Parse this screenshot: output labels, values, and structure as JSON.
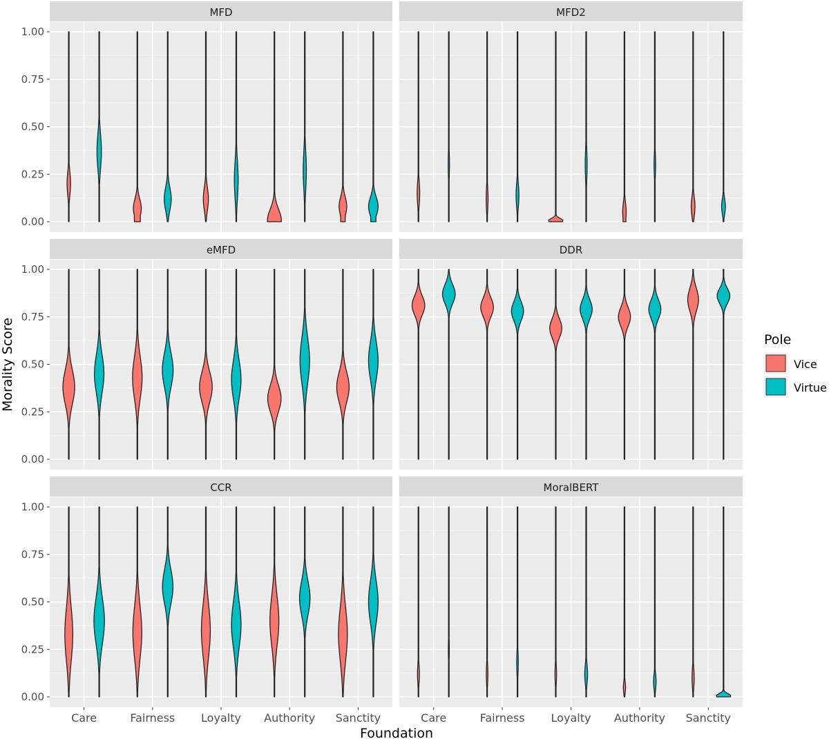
{
  "chart_data": {
    "type": "violin",
    "layout": "facet-grid-3x2",
    "xlabel": "Foundation",
    "ylabel": "Morality Score",
    "ylim": [
      0,
      1
    ],
    "y_ticks": [
      "0.00",
      "0.25",
      "0.50",
      "0.75",
      "1.00"
    ],
    "categories": [
      "Care",
      "Fairness",
      "Loyalty",
      "Authority",
      "Sanctity"
    ],
    "grid": true,
    "legend": {
      "title": "Pole",
      "placement": "right",
      "items": [
        {
          "name": "Vice",
          "color": "#F8766D"
        },
        {
          "name": "Virtue",
          "color": "#00BFC4"
        }
      ]
    },
    "panels": [
      {
        "title": "MFD",
        "violins": [
          {
            "foundation": "Care",
            "pole": "Vice",
            "range": [
              0,
              1
            ],
            "peak": 0.2,
            "spread": 0.06,
            "width": 0.11,
            "floor": 0
          },
          {
            "foundation": "Care",
            "pole": "Virtue",
            "range": [
              0,
              1
            ],
            "peak": 0.37,
            "spread": 0.09,
            "width": 0.14,
            "floor": 0
          },
          {
            "foundation": "Fairness",
            "pole": "Vice",
            "range": [
              0,
              1
            ],
            "peak": 0.07,
            "spread": 0.05,
            "width": 0.25,
            "floor": 0.75
          },
          {
            "foundation": "Fairness",
            "pole": "Virtue",
            "range": [
              0,
              1
            ],
            "peak": 0.12,
            "spread": 0.06,
            "width": 0.22,
            "floor": 0.1
          },
          {
            "foundation": "Loyalty",
            "pole": "Vice",
            "range": [
              0,
              1
            ],
            "peak": 0.12,
            "spread": 0.06,
            "width": 0.16,
            "floor": 0
          },
          {
            "foundation": "Loyalty",
            "pole": "Virtue",
            "range": [
              0,
              1
            ],
            "peak": 0.22,
            "spread": 0.1,
            "width": 0.12,
            "floor": 0
          },
          {
            "foundation": "Authority",
            "pole": "Vice",
            "range": [
              0,
              1
            ],
            "peak": 0.005,
            "spread": 0.06,
            "width": 0.44,
            "floor": 0.95
          },
          {
            "foundation": "Authority",
            "pole": "Virtue",
            "range": [
              0,
              1
            ],
            "peak": 0.27,
            "spread": 0.1,
            "width": 0.1,
            "floor": 0
          },
          {
            "foundation": "Sanctity",
            "pole": "Vice",
            "range": [
              0,
              1
            ],
            "peak": 0.08,
            "spread": 0.05,
            "width": 0.24,
            "floor": 0.6
          },
          {
            "foundation": "Sanctity",
            "pole": "Virtue",
            "range": [
              0,
              1
            ],
            "peak": 0.08,
            "spread": 0.05,
            "width": 0.3,
            "floor": 0.55
          }
        ]
      },
      {
        "title": "MFD2",
        "violins": [
          {
            "foundation": "Care",
            "pole": "Vice",
            "range": [
              0,
              1
            ],
            "peak": 0.15,
            "spread": 0.06,
            "width": 0.08,
            "floor": 0
          },
          {
            "foundation": "Care",
            "pole": "Virtue",
            "range": [
              0,
              1
            ],
            "peak": 0.3,
            "spread": 0.07,
            "width": 0.04,
            "floor": 0
          },
          {
            "foundation": "Fairness",
            "pole": "Vice",
            "range": [
              0,
              1
            ],
            "peak": 0.12,
            "spread": 0.06,
            "width": 0.06,
            "floor": 0
          },
          {
            "foundation": "Fairness",
            "pole": "Virtue",
            "range": [
              0,
              1
            ],
            "peak": 0.14,
            "spread": 0.06,
            "width": 0.09,
            "floor": 0
          },
          {
            "foundation": "Loyalty",
            "pole": "Vice",
            "range": [
              0,
              1
            ],
            "peak": 0.005,
            "spread": 0.012,
            "width": 0.47,
            "floor": 0.9
          },
          {
            "foundation": "Loyalty",
            "pole": "Virtue",
            "range": [
              0,
              1
            ],
            "peak": 0.3,
            "spread": 0.08,
            "width": 0.06,
            "floor": 0
          },
          {
            "foundation": "Authority",
            "pole": "Vice",
            "range": [
              0,
              1
            ],
            "peak": 0.05,
            "spread": 0.05,
            "width": 0.11,
            "floor": 0.85
          },
          {
            "foundation": "Authority",
            "pole": "Virtue",
            "range": [
              0,
              1
            ],
            "peak": 0.3,
            "spread": 0.06,
            "width": 0.05,
            "floor": 0
          },
          {
            "foundation": "Sanctity",
            "pole": "Vice",
            "range": [
              0,
              1
            ],
            "peak": 0.08,
            "spread": 0.05,
            "width": 0.12,
            "floor": 0.3
          },
          {
            "foundation": "Sanctity",
            "pole": "Virtue",
            "range": [
              0,
              1
            ],
            "peak": 0.08,
            "spread": 0.04,
            "width": 0.12,
            "floor": 0.2
          }
        ]
      },
      {
        "title": "eMFD",
        "violins": [
          {
            "foundation": "Care",
            "pole": "Vice",
            "range": [
              0,
              1
            ],
            "peak": 0.38,
            "spread": 0.09,
            "width": 0.37,
            "floor": 0
          },
          {
            "foundation": "Care",
            "pole": "Virtue",
            "range": [
              0,
              1
            ],
            "peak": 0.45,
            "spread": 0.1,
            "width": 0.3,
            "floor": 0
          },
          {
            "foundation": "Fairness",
            "pole": "Vice",
            "range": [
              0,
              1
            ],
            "peak": 0.43,
            "spread": 0.11,
            "width": 0.3,
            "floor": 0
          },
          {
            "foundation": "Fairness",
            "pole": "Virtue",
            "range": [
              0,
              1
            ],
            "peak": 0.47,
            "spread": 0.09,
            "width": 0.34,
            "floor": 0
          },
          {
            "foundation": "Loyalty",
            "pole": "Vice",
            "range": [
              0,
              1
            ],
            "peak": 0.38,
            "spread": 0.08,
            "width": 0.4,
            "floor": 0
          },
          {
            "foundation": "Loyalty",
            "pole": "Virtue",
            "range": [
              0,
              1
            ],
            "peak": 0.42,
            "spread": 0.1,
            "width": 0.3,
            "floor": 0
          },
          {
            "foundation": "Authority",
            "pole": "Vice",
            "range": [
              0,
              1
            ],
            "peak": 0.32,
            "spread": 0.07,
            "width": 0.42,
            "floor": 0
          },
          {
            "foundation": "Authority",
            "pole": "Virtue",
            "range": [
              0,
              1
            ],
            "peak": 0.52,
            "spread": 0.12,
            "width": 0.3,
            "floor": 0
          },
          {
            "foundation": "Sanctity",
            "pole": "Vice",
            "range": [
              0,
              1
            ],
            "peak": 0.38,
            "spread": 0.08,
            "width": 0.39,
            "floor": 0
          },
          {
            "foundation": "Sanctity",
            "pole": "Virtue",
            "range": [
              0,
              1
            ],
            "peak": 0.52,
            "spread": 0.1,
            "width": 0.3,
            "floor": 0
          }
        ]
      },
      {
        "title": "DDR",
        "violins": [
          {
            "foundation": "Care",
            "pole": "Vice",
            "range": [
              0,
              1
            ],
            "peak": 0.81,
            "spread": 0.05,
            "width": 0.4,
            "floor": 0
          },
          {
            "foundation": "Care",
            "pole": "Virtue",
            "range": [
              0,
              1
            ],
            "peak": 0.87,
            "spread": 0.05,
            "width": 0.4,
            "floor": 0
          },
          {
            "foundation": "Fairness",
            "pole": "Vice",
            "range": [
              0,
              1
            ],
            "peak": 0.8,
            "spread": 0.05,
            "width": 0.4,
            "floor": 0
          },
          {
            "foundation": "Fairness",
            "pole": "Virtue",
            "range": [
              0,
              1
            ],
            "peak": 0.78,
            "spread": 0.05,
            "width": 0.38,
            "floor": 0
          },
          {
            "foundation": "Loyalty",
            "pole": "Vice",
            "range": [
              0,
              1
            ],
            "peak": 0.69,
            "spread": 0.05,
            "width": 0.38,
            "floor": 0
          },
          {
            "foundation": "Loyalty",
            "pole": "Virtue",
            "range": [
              0,
              1
            ],
            "peak": 0.79,
            "spread": 0.05,
            "width": 0.38,
            "floor": 0
          },
          {
            "foundation": "Authority",
            "pole": "Vice",
            "range": [
              0,
              1
            ],
            "peak": 0.75,
            "spread": 0.05,
            "width": 0.38,
            "floor": 0
          },
          {
            "foundation": "Authority",
            "pole": "Virtue",
            "range": [
              0,
              1
            ],
            "peak": 0.79,
            "spread": 0.05,
            "width": 0.38,
            "floor": 0
          },
          {
            "foundation": "Sanctity",
            "pole": "Vice",
            "range": [
              0,
              1
            ],
            "peak": 0.84,
            "spread": 0.06,
            "width": 0.34,
            "floor": 0
          },
          {
            "foundation": "Sanctity",
            "pole": "Virtue",
            "range": [
              0,
              1
            ],
            "peak": 0.86,
            "spread": 0.04,
            "width": 0.4,
            "floor": 0
          }
        ]
      },
      {
        "title": "CCR",
        "violins": [
          {
            "foundation": "Care",
            "pole": "Vice",
            "range": [
              0,
              1
            ],
            "peak": 0.33,
            "spread": 0.14,
            "width": 0.25,
            "floor": 0
          },
          {
            "foundation": "Care",
            "pole": "Virtue",
            "range": [
              0,
              1
            ],
            "peak": 0.4,
            "spread": 0.12,
            "width": 0.33,
            "floor": 0
          },
          {
            "foundation": "Fairness",
            "pole": "Vice",
            "range": [
              0,
              1
            ],
            "peak": 0.34,
            "spread": 0.14,
            "width": 0.28,
            "floor": 0
          },
          {
            "foundation": "Fairness",
            "pole": "Virtue",
            "range": [
              0,
              1
            ],
            "peak": 0.58,
            "spread": 0.09,
            "width": 0.33,
            "floor": 0
          },
          {
            "foundation": "Loyalty",
            "pole": "Vice",
            "range": [
              0,
              1
            ],
            "peak": 0.35,
            "spread": 0.14,
            "width": 0.28,
            "floor": 0
          },
          {
            "foundation": "Loyalty",
            "pole": "Virtue",
            "range": [
              0,
              1
            ],
            "peak": 0.38,
            "spread": 0.12,
            "width": 0.3,
            "floor": 0
          },
          {
            "foundation": "Authority",
            "pole": "Vice",
            "range": [
              0,
              1
            ],
            "peak": 0.4,
            "spread": 0.13,
            "width": 0.28,
            "floor": 0
          },
          {
            "foundation": "Authority",
            "pole": "Virtue",
            "range": [
              0,
              1
            ],
            "peak": 0.52,
            "spread": 0.09,
            "width": 0.33,
            "floor": 0
          },
          {
            "foundation": "Sanctity",
            "pole": "Vice",
            "range": [
              0,
              1
            ],
            "peak": 0.33,
            "spread": 0.14,
            "width": 0.28,
            "floor": 0
          },
          {
            "foundation": "Sanctity",
            "pole": "Virtue",
            "range": [
              0,
              1
            ],
            "peak": 0.5,
            "spread": 0.11,
            "width": 0.3,
            "floor": 0
          }
        ]
      },
      {
        "title": "MoralBERT",
        "violins": [
          {
            "foundation": "Care",
            "pole": "Vice",
            "range": [
              0,
              1
            ],
            "peak": 0.12,
            "spread": 0.05,
            "width": 0.06,
            "floor": 0
          },
          {
            "foundation": "Care",
            "pole": "Virtue",
            "range": [
              0,
              1
            ],
            "peak": 0.25,
            "spread": 0.06,
            "width": 0.03,
            "floor": 0
          },
          {
            "foundation": "Fairness",
            "pole": "Vice",
            "range": [
              0,
              1
            ],
            "peak": 0.12,
            "spread": 0.05,
            "width": 0.05,
            "floor": 0
          },
          {
            "foundation": "Fairness",
            "pole": "Virtue",
            "range": [
              0,
              1
            ],
            "peak": 0.18,
            "spread": 0.06,
            "width": 0.05,
            "floor": 0
          },
          {
            "foundation": "Loyalty",
            "pole": "Vice",
            "range": [
              0,
              1
            ],
            "peak": 0.12,
            "spread": 0.05,
            "width": 0.05,
            "floor": 0
          },
          {
            "foundation": "Loyalty",
            "pole": "Virtue",
            "range": [
              0,
              1
            ],
            "peak": 0.12,
            "spread": 0.05,
            "width": 0.09,
            "floor": 0
          },
          {
            "foundation": "Authority",
            "pole": "Vice",
            "range": [
              0,
              1
            ],
            "peak": 0.05,
            "spread": 0.03,
            "width": 0.07,
            "floor": 0
          },
          {
            "foundation": "Authority",
            "pole": "Virtue",
            "range": [
              0,
              1
            ],
            "peak": 0.08,
            "spread": 0.04,
            "width": 0.08,
            "floor": 0
          },
          {
            "foundation": "Sanctity",
            "pole": "Vice",
            "range": [
              0,
              1
            ],
            "peak": 0.1,
            "spread": 0.05,
            "width": 0.07,
            "floor": 0
          },
          {
            "foundation": "Sanctity",
            "pole": "Virtue",
            "range": [
              0,
              1
            ],
            "peak": 0.005,
            "spread": 0.012,
            "width": 0.47,
            "floor": 0.9
          }
        ]
      }
    ]
  }
}
